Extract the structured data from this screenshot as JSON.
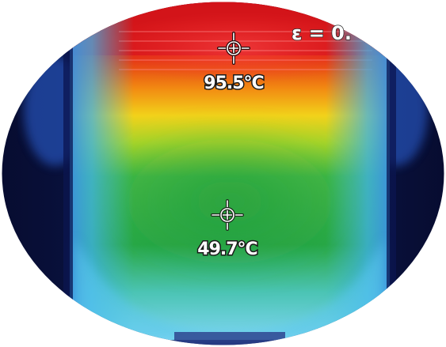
{
  "thermal_image": {
    "emissivity_text": "ε = 0.",
    "markers": [
      {
        "name": "hot-spot",
        "label": "95.5°C"
      },
      {
        "name": "center-spot",
        "label": "49.7°C"
      }
    ],
    "colors": {
      "hot": "#d21a14",
      "warm": "#f07a10",
      "mid": "#e9e21c",
      "cool": "#2fb448",
      "cold": "#3fb2e6",
      "background": "#0d1540"
    }
  }
}
